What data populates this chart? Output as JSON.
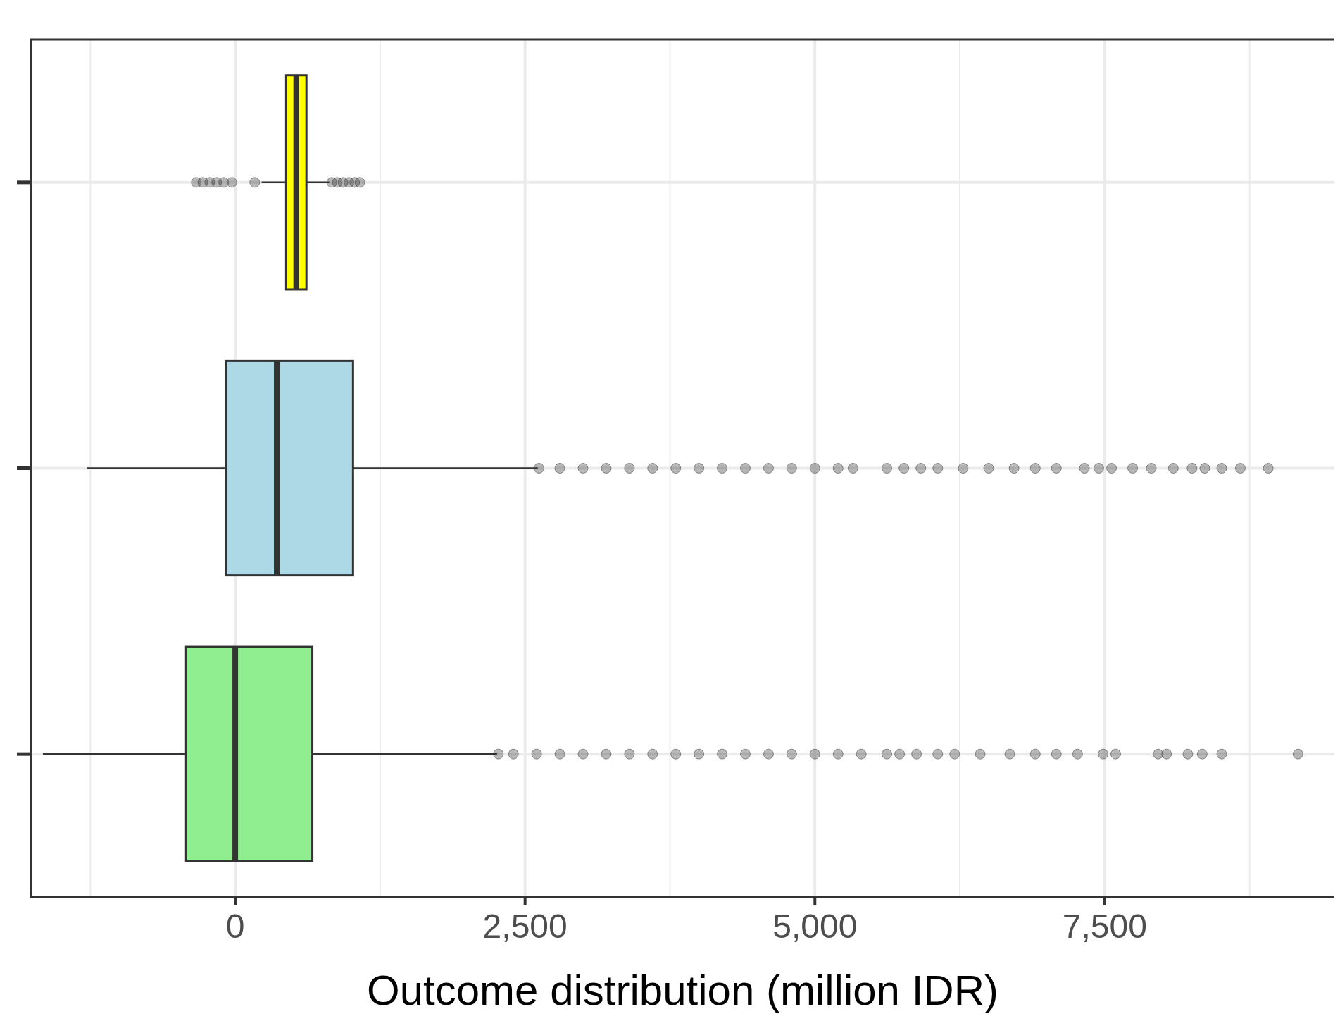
{
  "chart_data": {
    "type": "box",
    "orientation": "horizontal",
    "xlabel": "Outcome distribution (million IDR)",
    "categories": [
      null,
      null,
      null
    ],
    "colors": [
      "#ffff00",
      "#add8e6",
      "#90ee90"
    ],
    "boxes": [
      {
        "low": 227,
        "q1": 439,
        "median": 526,
        "q3": 614,
        "high": 811,
        "outliers": [
          -336,
          -280,
          -220,
          -160,
          -100,
          -29,
          168,
          833,
          880,
          930,
          980,
          1030,
          1075
        ]
      },
      {
        "low": -1279,
        "q1": -80,
        "median": 358,
        "q3": 1016,
        "high": 2610,
        "outliers": [
          2620,
          2800,
          3000,
          3200,
          3400,
          3600,
          3800,
          4000,
          4200,
          4400,
          4600,
          4800,
          5000,
          5200,
          5329,
          5621,
          5768,
          5914,
          6060,
          6279,
          6499,
          6718,
          6901,
          7083,
          7325,
          7449,
          7559,
          7741,
          7902,
          8092,
          8253,
          8363,
          8509,
          8670,
          8911
        ]
      },
      {
        "low": -1659,
        "q1": -424,
        "median": 0,
        "q3": 665,
        "high": 2259,
        "outliers": [
          2270,
          2400,
          2600,
          2800,
          3000,
          3200,
          3400,
          3600,
          3800,
          4000,
          4200,
          4400,
          4600,
          4800,
          5000,
          5200,
          5400,
          5621,
          5731,
          5877,
          6060,
          6206,
          6426,
          6681,
          6901,
          7083,
          7266,
          7486,
          7595,
          7961,
          8034,
          8217,
          8341,
          8509,
          9167
        ]
      }
    ],
    "xlim": [
      -1762,
      9481
    ],
    "xticks": [
      {
        "value": -1250,
        "label": null
      },
      0,
      {
        "value": 1250,
        "label": null
      },
      {
        "value": 2500,
        "label": "2,500"
      },
      {
        "value": 3750,
        "label": null
      },
      {
        "value": 5000,
        "label": "5,000"
      },
      {
        "value": 6250,
        "label": null
      },
      {
        "value": 7500,
        "label": "7,500"
      },
      {
        "value": 8750,
        "label": null
      }
    ],
    "grid": true,
    "tick_labels": "x"
  }
}
